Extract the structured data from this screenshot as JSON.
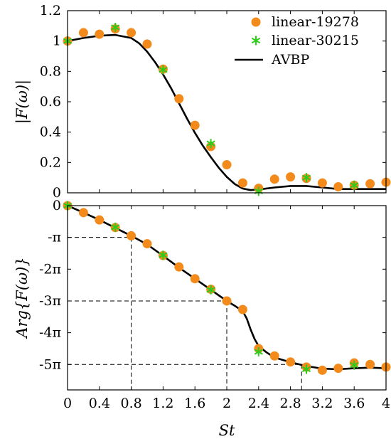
{
  "chart_data": [
    {
      "type": "scatter",
      "ylabel": "|F(ω)|",
      "ylim": [
        0,
        1.2
      ],
      "yticks": [
        "0",
        "0.2",
        "0.4",
        "0.6",
        "0.8",
        "1",
        "1.2"
      ],
      "legend": {
        "placement": "top-right"
      },
      "series": [
        {
          "name": "linear-19278",
          "marker": "circle",
          "color": "#f28a1c",
          "x": [
            0,
            0.2,
            0.4,
            0.6,
            0.8,
            1.0,
            1.2,
            1.4,
            1.6,
            1.8,
            2.0,
            2.2,
            2.4,
            2.6,
            2.8,
            3.0,
            3.2,
            3.4,
            3.6,
            3.8,
            4.0
          ],
          "y": [
            1.0,
            1.055,
            1.045,
            1.08,
            1.055,
            0.98,
            0.815,
            0.62,
            0.445,
            0.305,
            0.185,
            0.065,
            0.03,
            0.09,
            0.105,
            0.095,
            0.065,
            0.04,
            0.05,
            0.06,
            0.07
          ]
        },
        {
          "name": "linear-30215",
          "marker": "asterisk",
          "color": "#2ecc1a",
          "x": [
            0,
            0.6,
            1.2,
            1.8,
            2.4,
            3.0,
            3.6
          ],
          "y": [
            1.0,
            1.09,
            0.81,
            0.325,
            0.01,
            0.1,
            0.05
          ]
        },
        {
          "name": "AVBP",
          "marker": "line",
          "color": "#000000",
          "x": [
            0,
            0.2,
            0.4,
            0.6,
            0.8,
            0.9,
            1.0,
            1.1,
            1.2,
            1.3,
            1.4,
            1.5,
            1.6,
            1.7,
            1.8,
            1.9,
            2.0,
            2.1,
            2.2,
            2.3,
            2.4,
            2.6,
            2.8,
            3.0,
            3.2,
            3.4,
            3.6,
            3.8,
            4.0
          ],
          "y": [
            1.0,
            1.02,
            1.035,
            1.04,
            1.02,
            0.985,
            0.93,
            0.86,
            0.78,
            0.69,
            0.59,
            0.49,
            0.395,
            0.31,
            0.235,
            0.165,
            0.105,
            0.058,
            0.028,
            0.018,
            0.022,
            0.035,
            0.045,
            0.045,
            0.035,
            0.025,
            0.025,
            0.025,
            0.025
          ]
        }
      ]
    },
    {
      "type": "scatter",
      "xlabel": "St",
      "ylabel": "Arg{F(ω)}",
      "xlim": [
        0,
        4
      ],
      "ylim_over_pi": [
        -5.8,
        0
      ],
      "xticks": [
        "0",
        "0.4",
        "0.8",
        "1.2",
        "1.6",
        "2",
        "2.4",
        "2.8",
        "3.2",
        "3.6",
        "4"
      ],
      "yticks": [
        "0",
        "-π",
        "-2π",
        "-3π",
        "-4π",
        "-5π"
      ],
      "series": [
        {
          "name": "linear-19278",
          "marker": "circle",
          "color": "#f28a1c",
          "x": [
            0,
            0.2,
            0.4,
            0.6,
            0.8,
            1.0,
            1.2,
            1.4,
            1.6,
            1.8,
            2.0,
            2.2,
            2.4,
            2.6,
            2.8,
            3.0,
            3.2,
            3.4,
            3.6,
            3.8,
            4.0
          ],
          "y_over_pi": [
            0,
            -0.22,
            -0.45,
            -0.69,
            -0.95,
            -1.2,
            -1.57,
            -1.93,
            -2.3,
            -2.63,
            -3.0,
            -3.27,
            -4.5,
            -4.73,
            -4.92,
            -5.08,
            -5.18,
            -5.12,
            -4.95,
            -5.0,
            -5.08
          ]
        },
        {
          "name": "linear-30215",
          "marker": "asterisk",
          "color": "#2ecc1a",
          "x": [
            0,
            0.6,
            1.2,
            1.8,
            2.4,
            3.0,
            3.6
          ],
          "y_over_pi": [
            0,
            -0.68,
            -1.56,
            -2.65,
            -4.6,
            -5.15,
            -5.02
          ]
        },
        {
          "name": "AVBP",
          "marker": "line",
          "color": "#000000",
          "x": [
            0,
            0.2,
            0.4,
            0.6,
            0.8,
            1.0,
            1.2,
            1.4,
            1.6,
            1.8,
            2.0,
            2.1,
            2.2,
            2.25,
            2.3,
            2.35,
            2.4,
            2.5,
            2.6,
            2.8,
            3.0,
            3.2,
            3.4,
            3.6,
            3.8,
            4.0
          ],
          "y_over_pi": [
            0,
            -0.22,
            -0.45,
            -0.7,
            -0.95,
            -1.22,
            -1.58,
            -1.95,
            -2.3,
            -2.65,
            -3.0,
            -3.15,
            -3.32,
            -3.55,
            -3.9,
            -4.2,
            -4.42,
            -4.62,
            -4.78,
            -4.93,
            -5.05,
            -5.13,
            -5.15,
            -5.12,
            -5.1,
            -5.12
          ]
        }
      ],
      "reference_points": [
        {
          "x": 0.8,
          "y_over_pi": -1
        },
        {
          "x": 2.0,
          "y_over_pi": -3
        },
        {
          "x": 2.94,
          "y_over_pi": -5
        }
      ]
    }
  ]
}
